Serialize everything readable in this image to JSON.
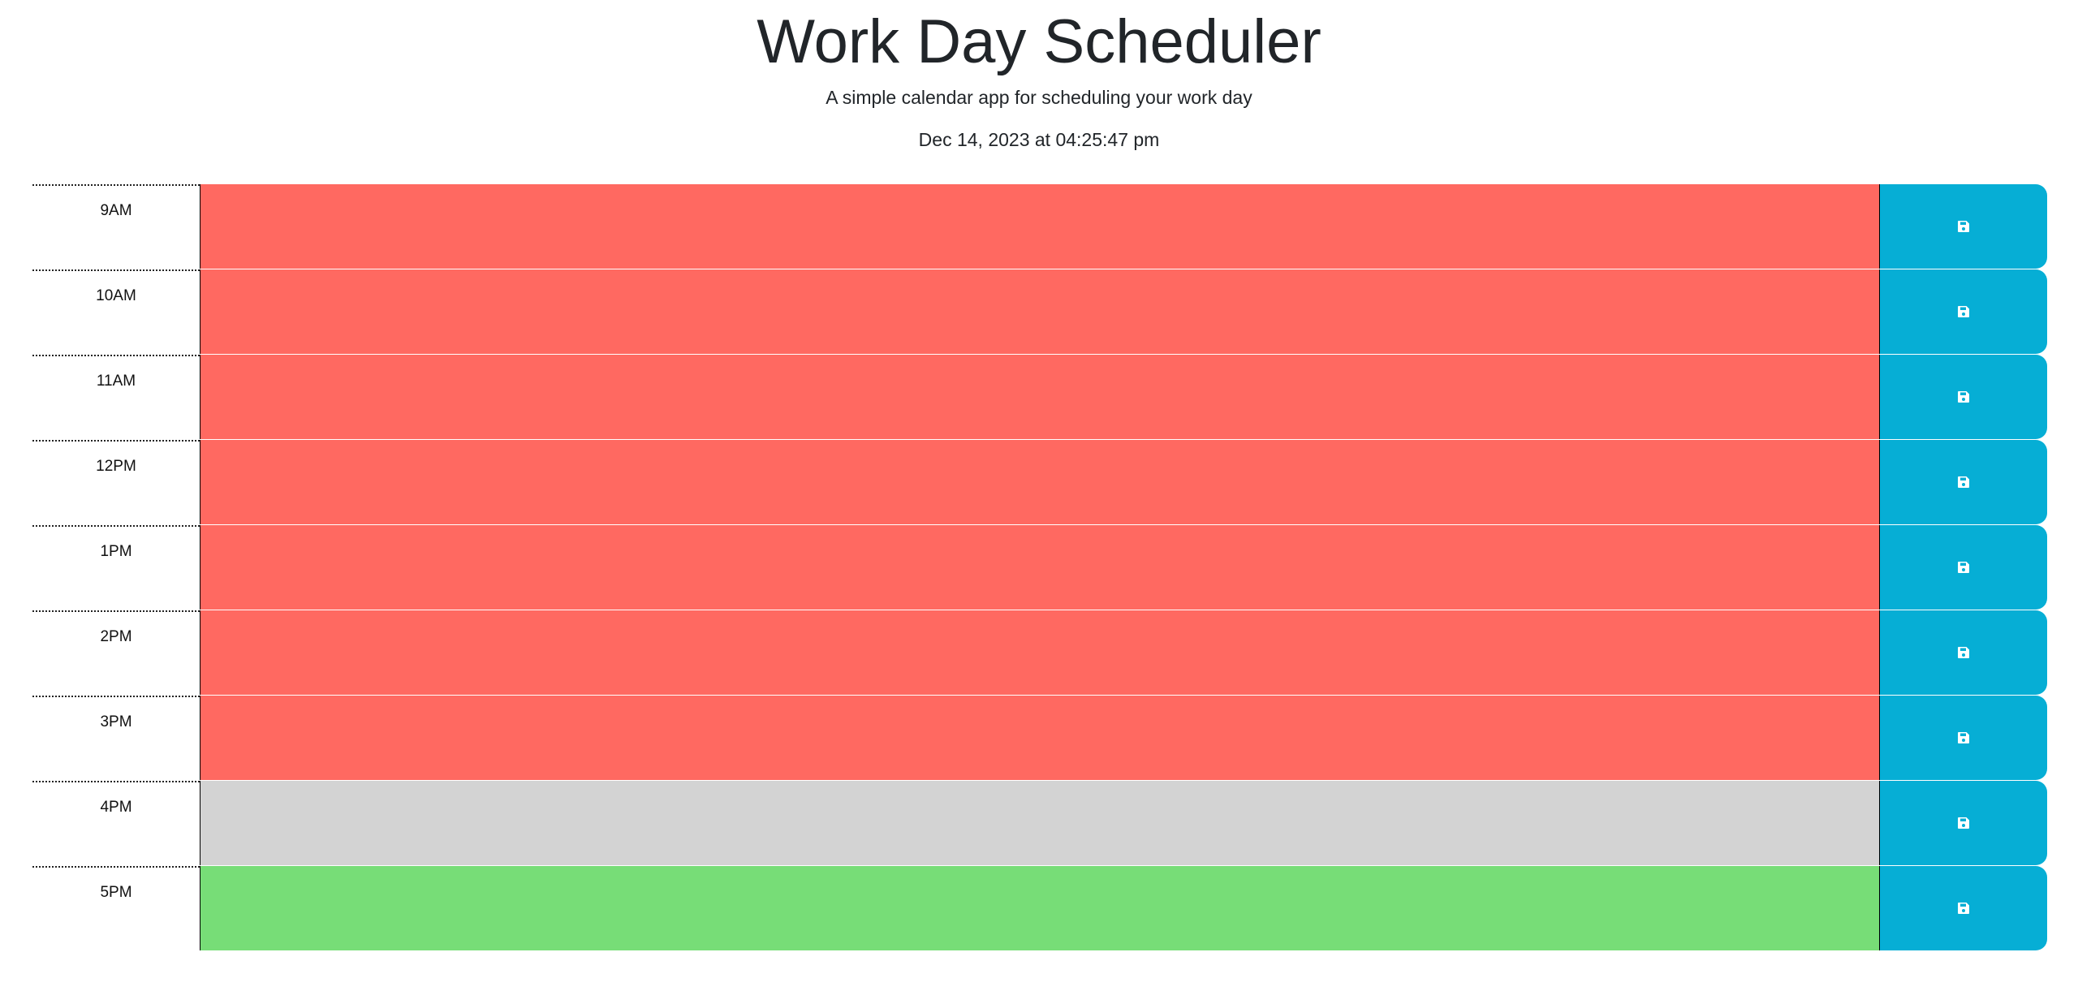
{
  "header": {
    "title": "Work Day Scheduler",
    "subtitle": "A simple calendar app for scheduling your work day",
    "datetime": "Dec 14, 2023 at 04:25:47 pm"
  },
  "colors": {
    "past": "#ff6961",
    "present": "#d3d3d3",
    "future": "#77dd77",
    "save_button": "#06aed5"
  },
  "save_icon": "floppy-disk-icon",
  "rows": [
    {
      "hour": "9AM",
      "status": "past",
      "text": ""
    },
    {
      "hour": "10AM",
      "status": "past",
      "text": ""
    },
    {
      "hour": "11AM",
      "status": "past",
      "text": ""
    },
    {
      "hour": "12PM",
      "status": "past",
      "text": ""
    },
    {
      "hour": "1PM",
      "status": "past",
      "text": ""
    },
    {
      "hour": "2PM",
      "status": "past",
      "text": ""
    },
    {
      "hour": "3PM",
      "status": "past",
      "text": ""
    },
    {
      "hour": "4PM",
      "status": "present",
      "text": ""
    },
    {
      "hour": "5PM",
      "status": "future",
      "text": ""
    }
  ]
}
